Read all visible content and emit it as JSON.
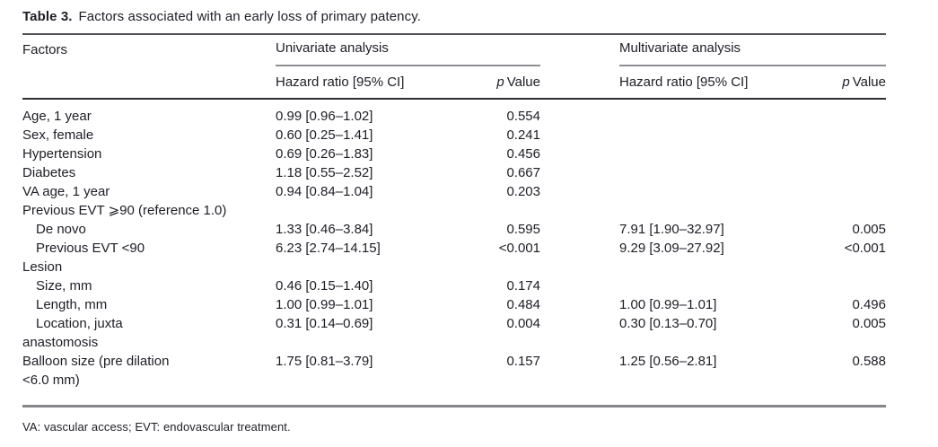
{
  "title": {
    "label": "Table 3.",
    "caption": "Factors associated with an early loss of primary patency."
  },
  "header": {
    "factors": "Factors",
    "univariate": "Univariate analysis",
    "multivariate": "Multivariate analysis",
    "hazard_ratio": "Hazard ratio [95% CI]",
    "p_label": "p",
    "value_label": "Value"
  },
  "rows": [
    {
      "factor": "Age, 1 year",
      "indent": 0,
      "uni_hr": "0.99 [0.96–1.02]",
      "uni_p": "0.554",
      "multi_hr": "",
      "multi_p": ""
    },
    {
      "factor": "Sex, female",
      "indent": 0,
      "uni_hr": "0.60 [0.25–1.41]",
      "uni_p": "0.241",
      "multi_hr": "",
      "multi_p": ""
    },
    {
      "factor": "Hypertension",
      "indent": 0,
      "uni_hr": "0.69 [0.26–1.83]",
      "uni_p": "0.456",
      "multi_hr": "",
      "multi_p": ""
    },
    {
      "factor": "Diabetes",
      "indent": 0,
      "uni_hr": "1.18 [0.55–2.52]",
      "uni_p": "0.667",
      "multi_hr": "",
      "multi_p": ""
    },
    {
      "factor": "VA age, 1 year",
      "indent": 0,
      "uni_hr": "0.94 [0.84–1.04]",
      "uni_p": "0.203",
      "multi_hr": "",
      "multi_p": ""
    },
    {
      "factor": "Previous EVT ⩾90 (reference 1.0)",
      "indent": 0,
      "uni_hr": "",
      "uni_p": "",
      "multi_hr": "",
      "multi_p": ""
    },
    {
      "factor": "De novo",
      "indent": 1,
      "uni_hr": "1.33 [0.46–3.84]",
      "uni_p": "0.595",
      "multi_hr": "7.91 [1.90–32.97]",
      "multi_p": "0.005"
    },
    {
      "factor": "Previous EVT <90",
      "indent": 1,
      "uni_hr": "6.23 [2.74–14.15]",
      "uni_p": "<0.001",
      "multi_hr": "9.29 [3.09–27.92]",
      "multi_p": "<0.001"
    },
    {
      "factor": "Lesion",
      "indent": 0,
      "uni_hr": "",
      "uni_p": "",
      "multi_hr": "",
      "multi_p": ""
    },
    {
      "factor": "Size, mm",
      "indent": 1,
      "uni_hr": "0.46 [0.15–1.40]",
      "uni_p": "0.174",
      "multi_hr": "",
      "multi_p": ""
    },
    {
      "factor": "Length, mm",
      "indent": 1,
      "uni_hr": "1.00 [0.99–1.01]",
      "uni_p": "0.484",
      "multi_hr": "1.00 [0.99–1.01]",
      "multi_p": "0.496"
    },
    {
      "factor": "Location, juxta",
      "indent": 1,
      "uni_hr": "0.31 [0.14–0.69]",
      "uni_p": "0.004",
      "multi_hr": "0.30 [0.13–0.70]",
      "multi_p": "0.005"
    },
    {
      "factor": "anastomosis",
      "indent": 0,
      "uni_hr": "",
      "uni_p": "",
      "multi_hr": "",
      "multi_p": ""
    },
    {
      "factor": "Balloon size (pre dilation",
      "indent": 0,
      "uni_hr": "1.75 [0.81–3.79]",
      "uni_p": "0.157",
      "multi_hr": "1.25 [0.56–2.81]",
      "multi_p": "0.588"
    },
    {
      "factor": "<6.0 mm)",
      "indent": 0,
      "uni_hr": "",
      "uni_p": "",
      "multi_hr": "",
      "multi_p": ""
    }
  ],
  "footnote": "VA: vascular access; EVT: endovascular treatment.",
  "colors": {
    "ink": "#1d1d26",
    "rule_top": "#515157",
    "rule_gray": "#8f8f94",
    "rule_dark": "#2e2e35",
    "rule_bottom": "#86868b",
    "background": "#ffffff"
  }
}
